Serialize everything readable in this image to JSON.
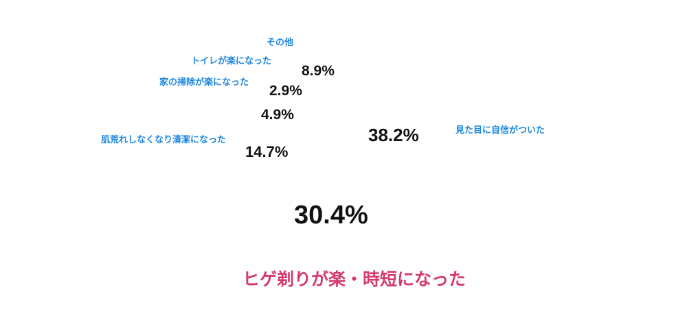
{
  "chart_data": {
    "type": "pie",
    "title": "",
    "unit": "%",
    "total": 100.0,
    "legend_position": "labels-around-pie",
    "slices": [
      {
        "label": "見た目に自信がついた",
        "value": 38.2,
        "value_text": "38.2%",
        "label_color": "#1e87e0",
        "emphasis": false
      },
      {
        "label": "ヒゲ剃りが楽・時短になった",
        "value": 30.4,
        "value_text": "30.4%",
        "label_color": "#d43a6e",
        "emphasis": true
      },
      {
        "label": "肌荒れしなくなり清潔になった",
        "value": 14.7,
        "value_text": "14.7%",
        "label_color": "#1e87e0",
        "emphasis": false
      },
      {
        "label": "家の掃除が楽になった",
        "value": 4.9,
        "value_text": "4.9%",
        "label_color": "#1e87e0",
        "emphasis": false
      },
      {
        "label": "トイレが楽になった",
        "value": 2.9,
        "value_text": "2.9%",
        "label_color": "#1e87e0",
        "emphasis": false
      },
      {
        "label": "その他",
        "value": 8.9,
        "value_text": "8.9%",
        "label_color": "#1e87e0",
        "emphasis": false
      }
    ]
  },
  "colors": {
    "label_blue": "#1e87e0",
    "label_pink": "#d43a6e",
    "value_text": "#111111",
    "background": "#ffffff"
  }
}
